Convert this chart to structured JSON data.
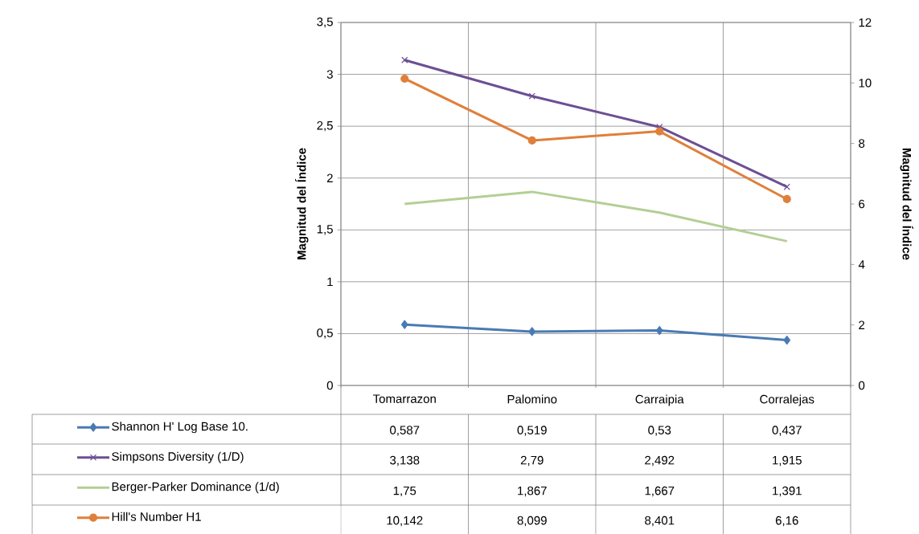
{
  "chart_data": {
    "type": "line",
    "ylabel": "Magnitud del Índice",
    "y2label": "Magnitud del Índice",
    "categories": [
      "Tomarrazon",
      "Palomino",
      "Carraipia",
      "Corralejas"
    ],
    "series": [
      {
        "name": "Shannon H' Log Base 10.",
        "color": "#4a7ab4",
        "marker": "diamond",
        "values": [
          0.587,
          0.519,
          0.53,
          0.437
        ],
        "value_labels": [
          "0,587",
          "0,519",
          "0,53",
          "0,437"
        ]
      },
      {
        "name": "Simpsons Diversity (1/D)",
        "color": "#6c4f94",
        "marker": "cross",
        "values": [
          3.138,
          2.79,
          2.492,
          1.915
        ],
        "value_labels": [
          "3,138",
          "2,79",
          "2,492",
          "1,915"
        ]
      },
      {
        "name": "Berger-Parker Dominance (1/d)",
        "color": "#b3cf95",
        "marker": "none",
        "values": [
          1.75,
          1.867,
          1.667,
          1.391
        ],
        "value_labels": [
          "1,75",
          "1,867",
          "1,667",
          "1,391"
        ]
      },
      {
        "name": "Hill's Number H1",
        "color": "#e07f3a",
        "marker": "circle",
        "axis": "y2",
        "values": [
          10.142,
          8.099,
          8.401,
          6.16
        ],
        "value_labels": [
          "10,142",
          "8,099",
          "8,401",
          "6,16"
        ]
      }
    ],
    "ylim": [
      0,
      3.5
    ],
    "yticks": [
      0,
      {
        "value": 0.5,
        "label": "0,5"
      },
      1,
      {
        "value": 1.5,
        "label": "1,5"
      },
      2,
      {
        "value": 2.5,
        "label": "2,5"
      },
      3,
      {
        "value": 3.5,
        "label": "3,5"
      }
    ],
    "y2lim": [
      0,
      12
    ],
    "y2ticks": [
      0,
      2,
      4,
      6,
      8,
      10,
      12
    ],
    "grid": true,
    "legend": "bottom",
    "line_style": "solid"
  }
}
